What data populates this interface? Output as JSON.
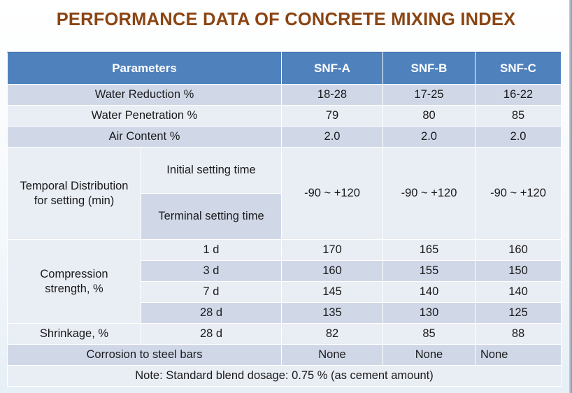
{
  "title": "PERFORMANCE DATA OF CONCRETE MIXING INDEX",
  "table": {
    "header": {
      "parameters": "Parameters",
      "snf_a": "SNF-A",
      "snf_b": "SNF-B",
      "snf_c": "SNF-C"
    },
    "water_reduction": {
      "label": "Water Reduction %",
      "a": "18-28",
      "b": "17-25",
      "c": "16-22"
    },
    "water_penetration": {
      "label": "Water Penetration %",
      "a": "79",
      "b": "80",
      "c": "85"
    },
    "air_content": {
      "label": "Air Content %",
      "a": "2.0",
      "b": "2.0",
      "c": "2.0"
    },
    "setting": {
      "label_line1": "Temporal Distribution",
      "label_line2": "for setting (min)",
      "initial": "Initial setting time",
      "terminal": "Terminal setting time",
      "a": "-90 ~ +120",
      "b": "-90 ~ +120",
      "c": "-90 ~ +120"
    },
    "compression": {
      "label_line1": "Compression",
      "label_line2": "strength, %",
      "rows": [
        {
          "age": "1 d",
          "a": "170",
          "b": "165",
          "c": "160"
        },
        {
          "age": "3 d",
          "a": "160",
          "b": "155",
          "c": "150"
        },
        {
          "age": "7 d",
          "a": "145",
          "b": "140",
          "c": "140"
        },
        {
          "age": "28 d",
          "a": "135",
          "b": "130",
          "c": "125"
        }
      ]
    },
    "shrinkage": {
      "label": "Shrinkage, %",
      "age": "28 d",
      "a": "82",
      "b": "85",
      "c": "88"
    },
    "corrosion": {
      "label": "Corrosion to steel bars",
      "a": "None",
      "b": "None",
      "c": "None"
    },
    "note": "Note: Standard blend dosage: 0.75 % (as cement amount)"
  }
}
